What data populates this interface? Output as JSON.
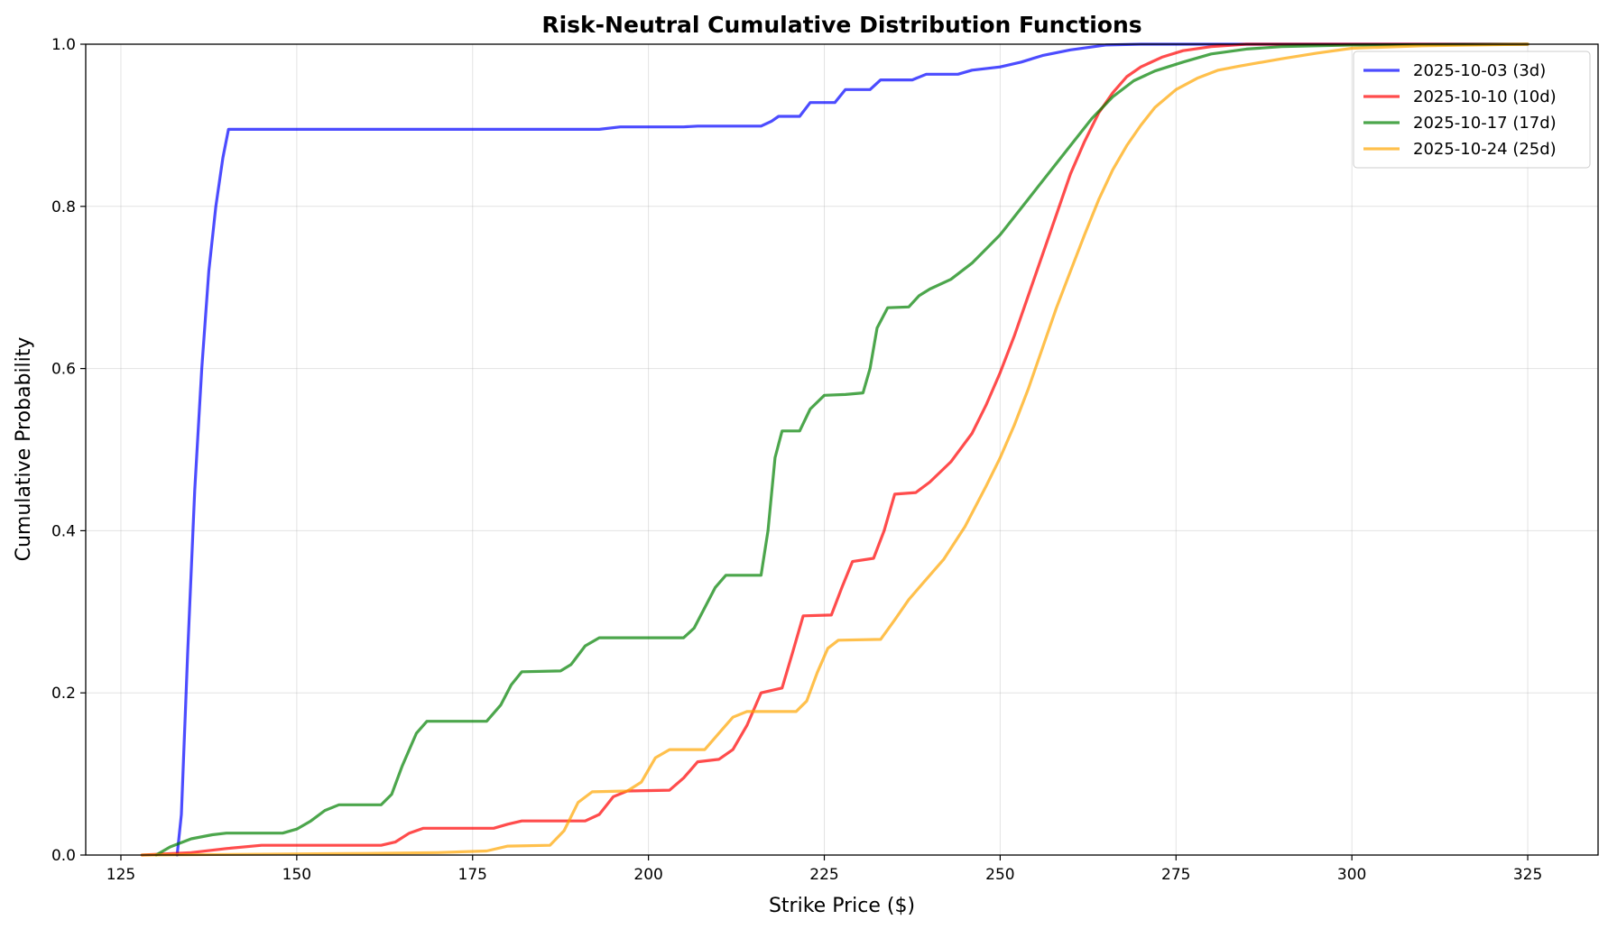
{
  "chart_data": {
    "type": "line",
    "title": "Risk-Neutral Cumulative Distribution Functions",
    "xlabel": "Strike Price ($)",
    "ylabel": "Cumulative Probability",
    "xlim": [
      120,
      335
    ],
    "ylim": [
      0,
      1
    ],
    "x_ticks": [
      125,
      150,
      175,
      200,
      225,
      250,
      275,
      300,
      325
    ],
    "y_ticks": [
      0.0,
      0.2,
      0.4,
      0.6,
      0.8,
      1.0
    ],
    "x_tick_labels": [
      "125",
      "150",
      "175",
      "200",
      "225",
      "250",
      "275",
      "300",
      "325"
    ],
    "y_tick_labels": [
      "0.0",
      "0.2",
      "0.4",
      "0.6",
      "0.8",
      "1.0"
    ],
    "grid": true,
    "legend_position": "top-right",
    "series": [
      {
        "name": "2025-10-03 (3d)",
        "color": "#0000ff",
        "points": [
          [
            133.0,
            0.0
          ],
          [
            133.6,
            0.05
          ],
          [
            134.5,
            0.25
          ],
          [
            135.5,
            0.45
          ],
          [
            136.5,
            0.6
          ],
          [
            137.5,
            0.72
          ],
          [
            138.5,
            0.8
          ],
          [
            139.5,
            0.86
          ],
          [
            140.3,
            0.895
          ],
          [
            160,
            0.895
          ],
          [
            180,
            0.895
          ],
          [
            193,
            0.895
          ],
          [
            196,
            0.898
          ],
          [
            205,
            0.898
          ],
          [
            207,
            0.899
          ],
          [
            216,
            0.899
          ],
          [
            217.5,
            0.905
          ],
          [
            218.5,
            0.911
          ],
          [
            221.5,
            0.911
          ],
          [
            223,
            0.928
          ],
          [
            226.5,
            0.928
          ],
          [
            228,
            0.944
          ],
          [
            231.5,
            0.944
          ],
          [
            233,
            0.956
          ],
          [
            237.5,
            0.956
          ],
          [
            239.5,
            0.963
          ],
          [
            244,
            0.963
          ],
          [
            246,
            0.968
          ],
          [
            250,
            0.972
          ],
          [
            253,
            0.978
          ],
          [
            256,
            0.986
          ],
          [
            260,
            0.993
          ],
          [
            265,
            0.999
          ],
          [
            270,
            1.0
          ],
          [
            325,
            1.0
          ]
        ]
      },
      {
        "name": "2025-10-10 (10d)",
        "color": "#ff0000",
        "points": [
          [
            128,
            0.0
          ],
          [
            135,
            0.003
          ],
          [
            140,
            0.008
          ],
          [
            145,
            0.012
          ],
          [
            162,
            0.012
          ],
          [
            164,
            0.016
          ],
          [
            166,
            0.027
          ],
          [
            168,
            0.033
          ],
          [
            178,
            0.033
          ],
          [
            180,
            0.038
          ],
          [
            182,
            0.042
          ],
          [
            191,
            0.042
          ],
          [
            193,
            0.05
          ],
          [
            195,
            0.072
          ],
          [
            197,
            0.079
          ],
          [
            203,
            0.08
          ],
          [
            205,
            0.095
          ],
          [
            207,
            0.115
          ],
          [
            210,
            0.118
          ],
          [
            212,
            0.13
          ],
          [
            214,
            0.16
          ],
          [
            216,
            0.2
          ],
          [
            219,
            0.206
          ],
          [
            220.5,
            0.25
          ],
          [
            222,
            0.295
          ],
          [
            226,
            0.296
          ],
          [
            227.5,
            0.33
          ],
          [
            229,
            0.362
          ],
          [
            232,
            0.366
          ],
          [
            233.5,
            0.4
          ],
          [
            235,
            0.445
          ],
          [
            238,
            0.447
          ],
          [
            240,
            0.46
          ],
          [
            243,
            0.485
          ],
          [
            246,
            0.52
          ],
          [
            248,
            0.555
          ],
          [
            250,
            0.595
          ],
          [
            252,
            0.64
          ],
          [
            254,
            0.69
          ],
          [
            256,
            0.74
          ],
          [
            258,
            0.79
          ],
          [
            260,
            0.84
          ],
          [
            262,
            0.88
          ],
          [
            264,
            0.915
          ],
          [
            266,
            0.94
          ],
          [
            268,
            0.96
          ],
          [
            270,
            0.972
          ],
          [
            273,
            0.984
          ],
          [
            276,
            0.992
          ],
          [
            280,
            0.997
          ],
          [
            285,
            1.0
          ],
          [
            325,
            1.0
          ]
        ]
      },
      {
        "name": "2025-10-17 (17d)",
        "color": "#008000",
        "points": [
          [
            130,
            0.0
          ],
          [
            132,
            0.01
          ],
          [
            135,
            0.02
          ],
          [
            138,
            0.025
          ],
          [
            140,
            0.027
          ],
          [
            148,
            0.027
          ],
          [
            150,
            0.032
          ],
          [
            152,
            0.042
          ],
          [
            154,
            0.055
          ],
          [
            156,
            0.062
          ],
          [
            162,
            0.062
          ],
          [
            163.5,
            0.075
          ],
          [
            165,
            0.11
          ],
          [
            167,
            0.15
          ],
          [
            168.5,
            0.165
          ],
          [
            177,
            0.165
          ],
          [
            179,
            0.185
          ],
          [
            180.5,
            0.21
          ],
          [
            182,
            0.226
          ],
          [
            187.5,
            0.227
          ],
          [
            189,
            0.235
          ],
          [
            191,
            0.258
          ],
          [
            193,
            0.268
          ],
          [
            205,
            0.268
          ],
          [
            206.5,
            0.28
          ],
          [
            208,
            0.305
          ],
          [
            209.5,
            0.33
          ],
          [
            211,
            0.345
          ],
          [
            216,
            0.345
          ],
          [
            217,
            0.4
          ],
          [
            218,
            0.49
          ],
          [
            219,
            0.523
          ],
          [
            221.5,
            0.523
          ],
          [
            223,
            0.55
          ],
          [
            225,
            0.567
          ],
          [
            228,
            0.568
          ],
          [
            230.5,
            0.57
          ],
          [
            231.5,
            0.6
          ],
          [
            232.5,
            0.65
          ],
          [
            234,
            0.675
          ],
          [
            237,
            0.676
          ],
          [
            238.5,
            0.69
          ],
          [
            240,
            0.698
          ],
          [
            243,
            0.71
          ],
          [
            246,
            0.73
          ],
          [
            250,
            0.765
          ],
          [
            255,
            0.82
          ],
          [
            260,
            0.875
          ],
          [
            263,
            0.908
          ],
          [
            266,
            0.935
          ],
          [
            269,
            0.955
          ],
          [
            272,
            0.967
          ],
          [
            276,
            0.978
          ],
          [
            280,
            0.988
          ],
          [
            285,
            0.994
          ],
          [
            290,
            0.997
          ],
          [
            300,
            0.999
          ],
          [
            325,
            1.0
          ]
        ]
      },
      {
        "name": "2025-10-24 (25d)",
        "color": "#ffa500",
        "points": [
          [
            128,
            0.0
          ],
          [
            160,
            0.002
          ],
          [
            170,
            0.003
          ],
          [
            177,
            0.005
          ],
          [
            180,
            0.011
          ],
          [
            186,
            0.012
          ],
          [
            188,
            0.03
          ],
          [
            190,
            0.065
          ],
          [
            192,
            0.078
          ],
          [
            197,
            0.079
          ],
          [
            199,
            0.09
          ],
          [
            201,
            0.12
          ],
          [
            203,
            0.13
          ],
          [
            208,
            0.13
          ],
          [
            210,
            0.15
          ],
          [
            212,
            0.17
          ],
          [
            214,
            0.177
          ],
          [
            221,
            0.177
          ],
          [
            222.5,
            0.19
          ],
          [
            224,
            0.225
          ],
          [
            225.5,
            0.255
          ],
          [
            227,
            0.265
          ],
          [
            233,
            0.266
          ],
          [
            235,
            0.29
          ],
          [
            237,
            0.315
          ],
          [
            239,
            0.335
          ],
          [
            242,
            0.365
          ],
          [
            245,
            0.405
          ],
          [
            248,
            0.455
          ],
          [
            250,
            0.49
          ],
          [
            252,
            0.53
          ],
          [
            254,
            0.575
          ],
          [
            256,
            0.625
          ],
          [
            258,
            0.675
          ],
          [
            260,
            0.72
          ],
          [
            262,
            0.765
          ],
          [
            264,
            0.808
          ],
          [
            266,
            0.845
          ],
          [
            268,
            0.875
          ],
          [
            270,
            0.9
          ],
          [
            272,
            0.922
          ],
          [
            275,
            0.944
          ],
          [
            278,
            0.958
          ],
          [
            281,
            0.968
          ],
          [
            284,
            0.973
          ],
          [
            290,
            0.982
          ],
          [
            295,
            0.989
          ],
          [
            300,
            0.995
          ],
          [
            310,
            0.998
          ],
          [
            325,
            1.0
          ]
        ]
      }
    ]
  }
}
